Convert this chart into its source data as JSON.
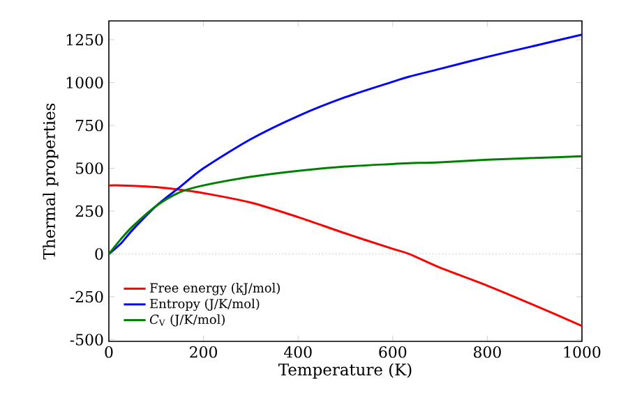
{
  "chart_data": {
    "type": "line",
    "xlabel": "Temperature (K)",
    "ylabel": "Thermal properties",
    "xlim": [
      0,
      1000
    ],
    "ylim": [
      -510,
      1360
    ],
    "xticks": [
      0,
      200,
      400,
      600,
      800,
      1000
    ],
    "yticks": [
      -500,
      -250,
      0,
      250,
      500,
      750,
      1000,
      1250
    ],
    "x": [
      0,
      25,
      50,
      100,
      150,
      200,
      300,
      400,
      500,
      600,
      635,
      700,
      800,
      900,
      1000
    ],
    "series": [
      {
        "name": "Free energy (kJ/mol)",
        "color": "#ff0000",
        "values": [
          400,
          400,
          398,
          390,
          375,
          355,
          300,
          215,
          120,
          30,
          0,
          -80,
          -185,
          -300,
          -420
        ]
      },
      {
        "name": "Entropy (J/K/mol)",
        "color": "#0000ff",
        "values": [
          0,
          60,
          140,
          280,
          390,
          500,
          670,
          805,
          915,
          1005,
          1035,
          1080,
          1150,
          1215,
          1280
        ]
      },
      {
        "name": "*C*$_{V}$ (J/K/mol)",
        "color": "#008000",
        "values": [
          0,
          85,
          160,
          280,
          360,
          400,
          450,
          485,
          510,
          525,
          530,
          535,
          550,
          560,
          570
        ]
      }
    ],
    "ref_lines": [
      {
        "axis": "y",
        "value": 0,
        "color": "#808080",
        "line_style": "dotted"
      }
    ],
    "legend": "bottom left",
    "grid": false,
    "marker": "none",
    "line_style": "solid"
  }
}
